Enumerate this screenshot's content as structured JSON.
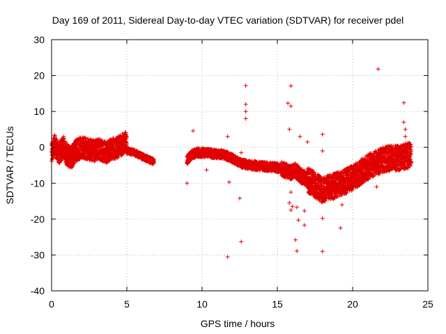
{
  "chart_data": {
    "type": "scatter",
    "title": "Day 169 of 2011, Sidereal Day-to-day VTEC variation (SDTVAR) for receiver pdel",
    "xlabel": "GPS time / hours",
    "ylabel": "SDTVAR / TECUs",
    "xlim": [
      0,
      25
    ],
    "ylim": [
      -40,
      30
    ],
    "xticks": [
      0,
      5,
      10,
      15,
      20,
      25
    ],
    "yticks": [
      -40,
      -30,
      -20,
      -10,
      0,
      10,
      20,
      30
    ],
    "grid": true,
    "marker": "+",
    "series_color": "#e00000",
    "dense_segments": [
      {
        "x": [
          0.0,
          0.2,
          0.5,
          0.8,
          1.0,
          1.3,
          1.6,
          2.0,
          2.4,
          2.8,
          3.2,
          3.6,
          4.0,
          4.4,
          4.8,
          5.0
        ],
        "center": [
          -1.0,
          0.5,
          -1.5,
          0.0,
          -2.0,
          -3.0,
          -1.0,
          0.0,
          -0.5,
          -1.0,
          -0.5,
          -1.5,
          -0.5,
          0.0,
          1.0,
          1.5
        ],
        "spread": 3.0
      },
      {
        "x": [
          5.0,
          5.5,
          6.0,
          6.5,
          6.8
        ],
        "center": [
          -1.0,
          -1.5,
          -2.5,
          -3.5,
          -4.0
        ],
        "spread": 0.8
      },
      {
        "x": [
          9.0,
          9.3,
          9.7,
          10.2,
          10.8,
          11.4
        ],
        "center": [
          -3.5,
          -2.0,
          -1.5,
          -1.5,
          -1.8,
          -2.0
        ],
        "spread": 1.2
      },
      {
        "x": [
          11.4,
          12.0,
          12.6,
          13.2,
          14.0,
          14.8,
          15.3
        ],
        "center": [
          -2.0,
          -3.0,
          -4.5,
          -5.0,
          -5.3,
          -5.5,
          -6.0
        ],
        "spread": 1.2
      },
      {
        "x": [
          15.3,
          15.8,
          16.2,
          16.6,
          17.0
        ],
        "center": [
          -6.0,
          -7.0,
          -6.5,
          -8.0,
          -9.0
        ],
        "spread": 2.0
      },
      {
        "x": [
          17.0,
          17.5,
          18.0,
          18.5,
          19.0,
          19.5,
          20.0,
          20.5,
          21.0,
          21.5,
          22.0,
          22.5,
          23.0,
          23.5,
          23.9
        ],
        "center": [
          -9.0,
          -10.5,
          -12.0,
          -11.0,
          -10.5,
          -9.5,
          -8.5,
          -7.0,
          -5.5,
          -4.5,
          -3.5,
          -3.0,
          -3.0,
          -2.5,
          -2.0
        ],
        "spread": 3.5
      }
    ],
    "outliers": [
      {
        "x": 9.0,
        "y": -10.0
      },
      {
        "x": 9.4,
        "y": 4.6
      },
      {
        "x": 10.3,
        "y": -6.3
      },
      {
        "x": 11.7,
        "y": 3.0
      },
      {
        "x": 11.8,
        "y": -9.7
      },
      {
        "x": 11.7,
        "y": -30.5
      },
      {
        "x": 12.5,
        "y": -14.2
      },
      {
        "x": 12.6,
        "y": -26.3
      },
      {
        "x": 12.6,
        "y": -1.5
      },
      {
        "x": 12.9,
        "y": 17.2
      },
      {
        "x": 12.9,
        "y": 12.0
      },
      {
        "x": 12.9,
        "y": 10.0
      },
      {
        "x": 12.9,
        "y": 8.0
      },
      {
        "x": 15.7,
        "y": 12.3
      },
      {
        "x": 15.9,
        "y": 17.1
      },
      {
        "x": 15.9,
        "y": 11.5
      },
      {
        "x": 15.8,
        "y": 5.0
      },
      {
        "x": 15.9,
        "y": -12.5
      },
      {
        "x": 15.8,
        "y": -15.5
      },
      {
        "x": 15.9,
        "y": -17.5
      },
      {
        "x": 16.0,
        "y": -16.5
      },
      {
        "x": 16.2,
        "y": -25.8
      },
      {
        "x": 16.3,
        "y": -28.9
      },
      {
        "x": 16.3,
        "y": -16.7
      },
      {
        "x": 16.4,
        "y": -20.3
      },
      {
        "x": 16.8,
        "y": -21.7
      },
      {
        "x": 16.8,
        "y": -17.7
      },
      {
        "x": 16.5,
        "y": 3.0
      },
      {
        "x": 17.0,
        "y": 1.5
      },
      {
        "x": 18.0,
        "y": 3.6
      },
      {
        "x": 18.0,
        "y": -1.0
      },
      {
        "x": 18.0,
        "y": -19.8
      },
      {
        "x": 18.0,
        "y": -29.0
      },
      {
        "x": 19.2,
        "y": -22.5
      },
      {
        "x": 19.3,
        "y": -16.0
      },
      {
        "x": 21.7,
        "y": 21.8
      },
      {
        "x": 21.6,
        "y": -11.0
      },
      {
        "x": 23.4,
        "y": 12.4
      },
      {
        "x": 23.4,
        "y": 7.0
      },
      {
        "x": 23.5,
        "y": 5.0
      },
      {
        "x": 23.5,
        "y": 3.0
      }
    ]
  }
}
